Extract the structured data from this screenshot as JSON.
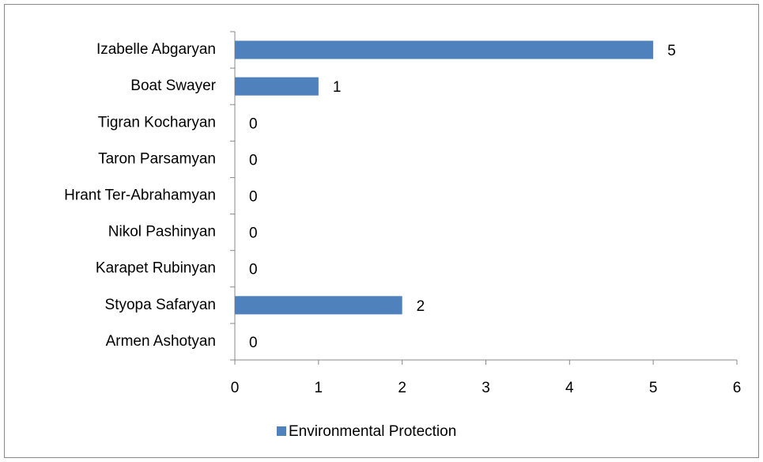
{
  "chart_data": {
    "type": "bar",
    "orientation": "horizontal",
    "categories": [
      "Izabelle Abgaryan",
      "Boat Swayer",
      "Tigran Kocharyan",
      "Taron Parsamyan",
      "Hrant Ter-Abrahamyan",
      "Nikol Pashinyan",
      "Karapet Rubinyan",
      "Styopa Safaryan",
      "Armen Ashotyan"
    ],
    "series": [
      {
        "name": "Environmental Protection",
        "color": "#4f81bd",
        "values": [
          5,
          1,
          0,
          0,
          0,
          0,
          0,
          2,
          0
        ]
      }
    ],
    "xlim": [
      0,
      6
    ],
    "xticks": [
      0,
      1,
      2,
      3,
      4,
      5,
      6
    ],
    "grid": false,
    "legend": "bottom"
  }
}
